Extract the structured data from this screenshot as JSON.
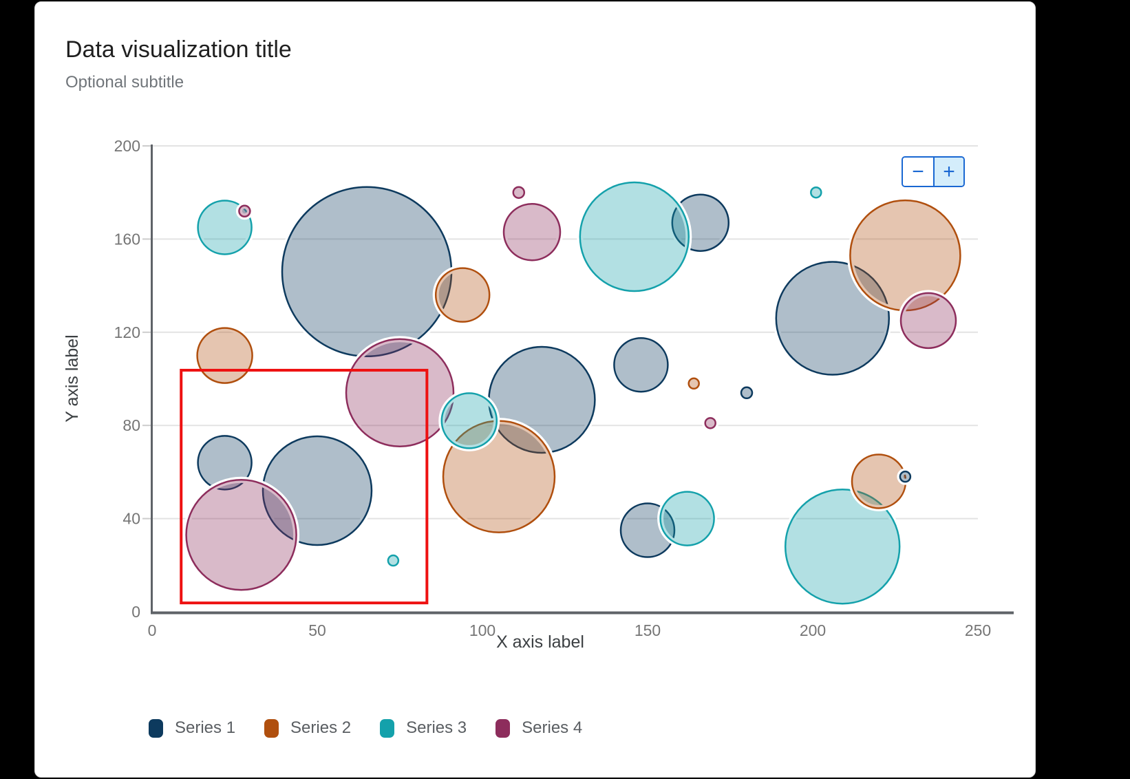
{
  "header": {
    "title": "Data visualization title",
    "subtitle": "Optional subtitle"
  },
  "toolbar": {
    "zoom_out_label": "−",
    "zoom_in_label": "+",
    "accent_color": "#1967d2",
    "zoom_in_background": "#d4edfb"
  },
  "chart_data": {
    "type": "scatter",
    "subtype": "bubble",
    "title": "Data visualization title",
    "subtitle": "Optional subtitle",
    "xlabel": "X axis label",
    "ylabel": "Y axis label",
    "xlim": [
      0,
      250
    ],
    "ylim": [
      0,
      200
    ],
    "x_ticks": [
      0,
      50,
      100,
      150,
      200,
      250
    ],
    "y_ticks": [
      0,
      40,
      80,
      120,
      160,
      200
    ],
    "grid": "horizontal",
    "legend_position": "bottom",
    "axis_color": "#5f6368",
    "grid_color": "#e3e3e3",
    "series": [
      {
        "name": "Series 1",
        "color": "#0d3a5e",
        "points": [
          {
            "x": 65,
            "y": 146,
            "r": 123,
            "z": 1
          },
          {
            "x": 118,
            "y": 91,
            "r": 77,
            "z": 2
          },
          {
            "x": 206,
            "y": 126,
            "r": 82,
            "z": 3
          },
          {
            "x": 22,
            "y": 64,
            "r": 39,
            "z": 4
          },
          {
            "x": 50,
            "y": 52,
            "r": 79,
            "z": 5
          },
          {
            "x": 148,
            "y": 106,
            "r": 39,
            "z": 6
          },
          {
            "x": 150,
            "y": 35,
            "r": 39,
            "z": 7
          },
          {
            "x": 166,
            "y": 167,
            "r": 41,
            "z": 8
          },
          {
            "x": 180,
            "y": 94,
            "r": 8,
            "z": 27
          },
          {
            "x": 228,
            "y": 58,
            "r": 7.5,
            "z": 28
          }
        ]
      },
      {
        "name": "Series 2",
        "color": "#b04f0e",
        "points": [
          {
            "x": 22,
            "y": 110,
            "r": 40,
            "z": 9
          },
          {
            "x": 228,
            "y": 153,
            "r": 80,
            "z": 10
          },
          {
            "x": 94,
            "y": 136,
            "r": 39,
            "z": 15
          },
          {
            "x": 105,
            "y": 58,
            "r": 81,
            "z": 16
          },
          {
            "x": 220,
            "y": 56,
            "r": 39,
            "z": 22
          },
          {
            "x": 164,
            "y": 98,
            "r": 7.5,
            "z": 26
          }
        ]
      },
      {
        "name": "Series 3",
        "color": "#14a1ab",
        "points": [
          {
            "x": 22,
            "y": 165,
            "r": 39,
            "z": 17
          },
          {
            "x": 146,
            "y": 161,
            "r": 79,
            "z": 18
          },
          {
            "x": 96,
            "y": 82,
            "r": 40,
            "z": 19
          },
          {
            "x": 162,
            "y": 40,
            "r": 39,
            "z": 20
          },
          {
            "x": 209,
            "y": 28,
            "r": 83,
            "z": 21
          },
          {
            "x": 73,
            "y": 22,
            "r": 7.5,
            "z": 29
          },
          {
            "x": 201,
            "y": 180,
            "r": 7.5,
            "z": 30
          }
        ]
      },
      {
        "name": "Series 4",
        "color": "#8d2d5c",
        "points": [
          {
            "x": 115,
            "y": 163,
            "r": 41,
            "z": 11
          },
          {
            "x": 27,
            "y": 33,
            "r": 80,
            "z": 12
          },
          {
            "x": 75,
            "y": 94,
            "r": 78,
            "z": 13
          },
          {
            "x": 235,
            "y": 125,
            "r": 40,
            "z": 14
          },
          {
            "x": 28,
            "y": 172,
            "r": 8,
            "z": 23
          },
          {
            "x": 111,
            "y": 180,
            "r": 8,
            "z": 24
          },
          {
            "x": 169,
            "y": 81,
            "r": 7.5,
            "z": 25
          }
        ]
      }
    ],
    "selection_rect": {
      "x1": 8.8,
      "y1": 3.8,
      "x2": 83.2,
      "y2": 103.7,
      "color": "#ee1111"
    }
  }
}
